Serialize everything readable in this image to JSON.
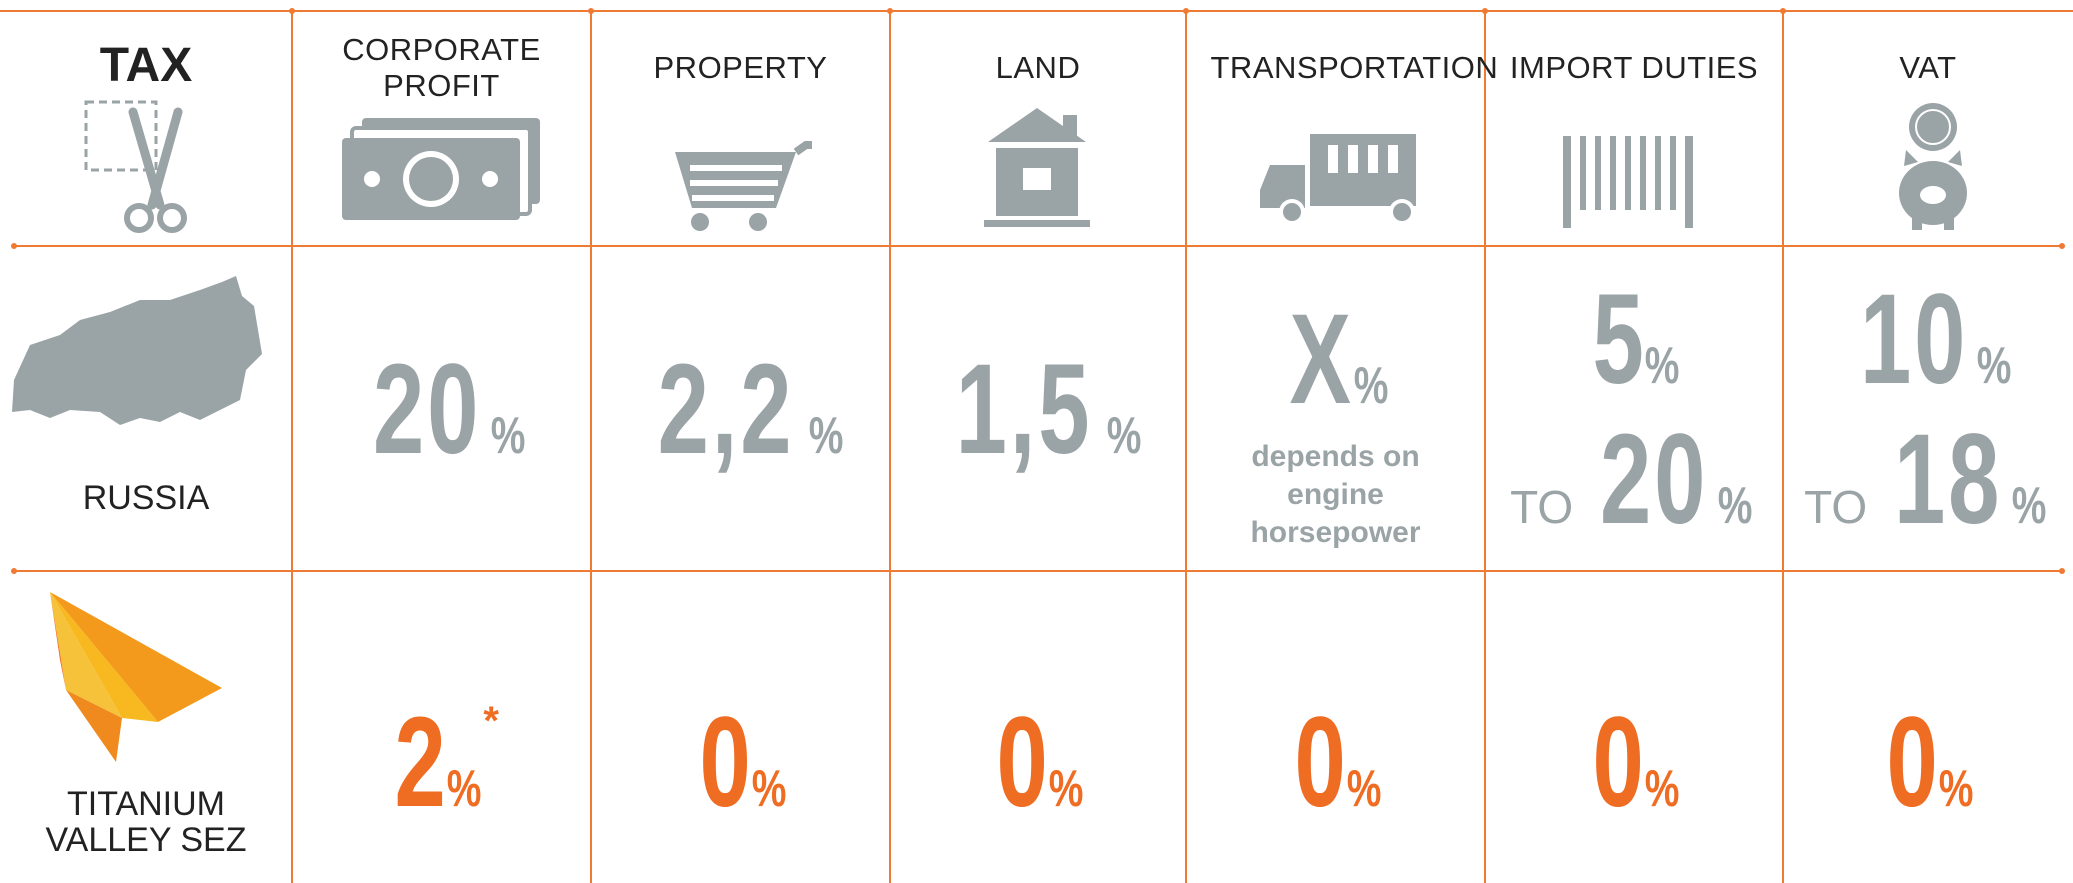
{
  "header": {
    "title": "TAX",
    "columns": [
      "CORPORATE PROFIT",
      "PROPERTY",
      "LAND",
      "TRANSPORTATION",
      "IMPORT DUTIES",
      "VAT"
    ]
  },
  "rows": [
    {
      "label": "RUSSIA",
      "cells": [
        {
          "value": "20",
          "unit": "%"
        },
        {
          "value": "2,2",
          "unit": "%"
        },
        {
          "value": "1,5",
          "unit": "%"
        },
        {
          "value": "X",
          "unit": "%",
          "note": "depends on engine horsepower"
        },
        {
          "value": "5",
          "unit": "%",
          "to_prefix": "TO",
          "to_value": "20",
          "to_unit": "%"
        },
        {
          "value": "10",
          "unit": "%",
          "to_prefix": "TO",
          "to_value": "18",
          "to_unit": "%"
        }
      ]
    },
    {
      "label": "TITANIUM VALLEY SEZ",
      "cells": [
        {
          "value": "2",
          "unit": "%",
          "footnote_mark": "*"
        },
        {
          "value": "0",
          "unit": "%"
        },
        {
          "value": "0",
          "unit": "%"
        },
        {
          "value": "0",
          "unit": "%"
        },
        {
          "value": "0",
          "unit": "%"
        },
        {
          "value": "0",
          "unit": "%"
        }
      ]
    }
  ]
}
